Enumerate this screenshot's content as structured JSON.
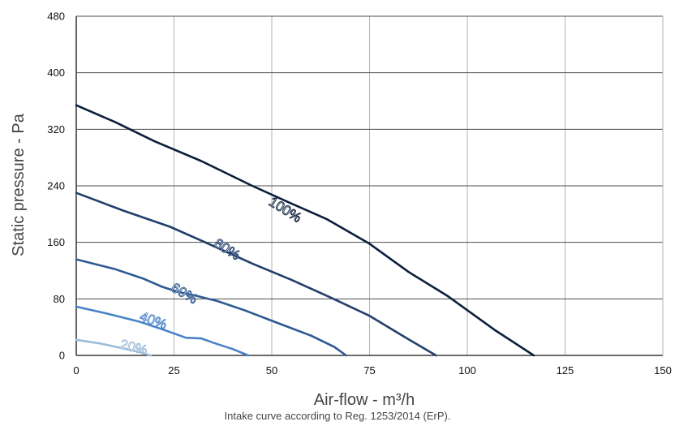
{
  "chart_data": {
    "type": "line",
    "xlabel": "Air-flow - m³/h",
    "ylabel": "Static pressure - Pa",
    "caption": "Intake curve according to Reg. 1253/2014 (ErP).",
    "xlim": [
      0,
      150
    ],
    "ylim": [
      0,
      480
    ],
    "x_ticks": [
      "0",
      "25",
      "50",
      "75",
      "100",
      "125",
      "150"
    ],
    "y_ticks": [
      "0",
      "80",
      "160",
      "240",
      "320",
      "400",
      "480"
    ],
    "grid": true,
    "series": [
      {
        "name": "100%",
        "color": "#0c1e3c",
        "points": [
          [
            0,
            354
          ],
          [
            10,
            330
          ],
          [
            20,
            303
          ],
          [
            32,
            275
          ],
          [
            45,
            240
          ],
          [
            55,
            215
          ],
          [
            64,
            193
          ],
          [
            75,
            158
          ],
          [
            85,
            118
          ],
          [
            95,
            84
          ],
          [
            107,
            36
          ],
          [
            117,
            0
          ]
        ]
      },
      {
        "name": "80%",
        "color": "#213f6b",
        "points": [
          [
            0,
            230
          ],
          [
            12,
            205
          ],
          [
            24,
            182
          ],
          [
            35,
            155
          ],
          [
            45,
            130
          ],
          [
            55,
            107
          ],
          [
            65,
            82
          ],
          [
            75,
            56
          ],
          [
            84,
            26
          ],
          [
            92,
            0
          ]
        ]
      },
      {
        "name": "60%",
        "color": "#2e5a92",
        "points": [
          [
            0,
            136
          ],
          [
            10,
            122
          ],
          [
            17,
            109
          ],
          [
            22,
            97
          ],
          [
            26,
            90
          ],
          [
            31,
            84
          ],
          [
            36,
            77
          ],
          [
            43,
            64
          ],
          [
            51,
            47
          ],
          [
            60,
            28
          ],
          [
            66,
            12
          ],
          [
            69,
            0
          ]
        ]
      },
      {
        "name": "40%",
        "color": "#4a82c8",
        "points": [
          [
            0,
            69
          ],
          [
            8,
            59
          ],
          [
            16,
            48
          ],
          [
            22,
            37
          ],
          [
            26,
            29
          ],
          [
            28,
            25
          ],
          [
            32,
            24
          ],
          [
            35,
            18
          ],
          [
            40,
            9
          ],
          [
            44,
            0
          ]
        ]
      },
      {
        "name": "20%",
        "color": "#9dbcdc",
        "points": [
          [
            0,
            22
          ],
          [
            6,
            17
          ],
          [
            12,
            10
          ],
          [
            16,
            5
          ],
          [
            19,
            0
          ]
        ]
      }
    ]
  }
}
